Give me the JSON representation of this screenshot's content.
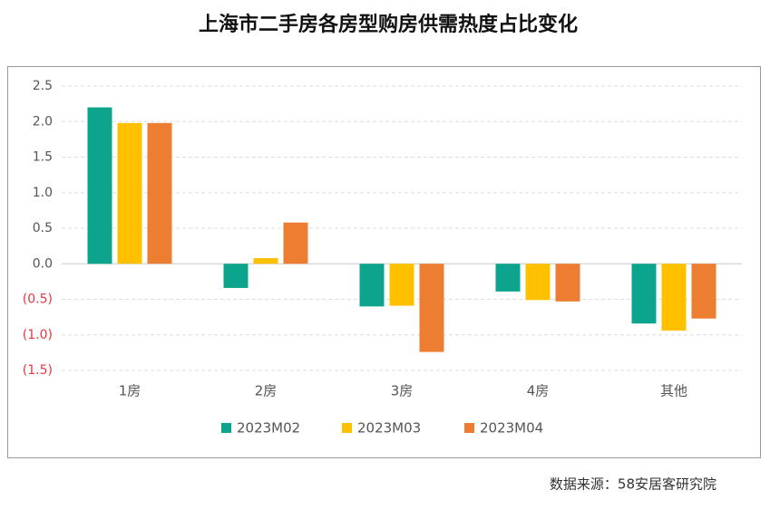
{
  "chart_data": {
    "type": "bar",
    "title": "上海市二手房各房型购房供需热度占比变化",
    "categories": [
      "1房",
      "2房",
      "3房",
      "4房",
      "其他"
    ],
    "series": [
      {
        "name": "2023M02",
        "color": "#0ca48c",
        "values": [
          2.2,
          -0.34,
          -0.6,
          -0.39,
          -0.84
        ]
      },
      {
        "name": "2023M03",
        "color": "#ffc000",
        "values": [
          1.98,
          0.08,
          -0.59,
          -0.51,
          -0.94
        ]
      },
      {
        "name": "2023M04",
        "color": "#ed7d31",
        "values": [
          1.98,
          0.58,
          -1.24,
          -0.53,
          -0.77
        ]
      }
    ],
    "ylim": [
      -1.5,
      2.5
    ],
    "yticks": [
      {
        "value": -1.5,
        "label": "(1.5)"
      },
      {
        "value": -1,
        "label": "(1.0)"
      },
      {
        "value": -0.5,
        "label": "(0.5)"
      },
      {
        "value": 0,
        "label": "0.0"
      },
      {
        "value": 0.5,
        "label": "0.5"
      },
      {
        "value": 1,
        "label": "1.0"
      },
      {
        "value": 1.5,
        "label": "1.5"
      },
      {
        "value": 2,
        "label": "2.0"
      },
      {
        "value": 2.5,
        "label": "2.5"
      }
    ],
    "grid": true,
    "negative_tick_color": "#e8383d",
    "legend": "bottom",
    "source": "数据来源：58安居客研究院"
  }
}
